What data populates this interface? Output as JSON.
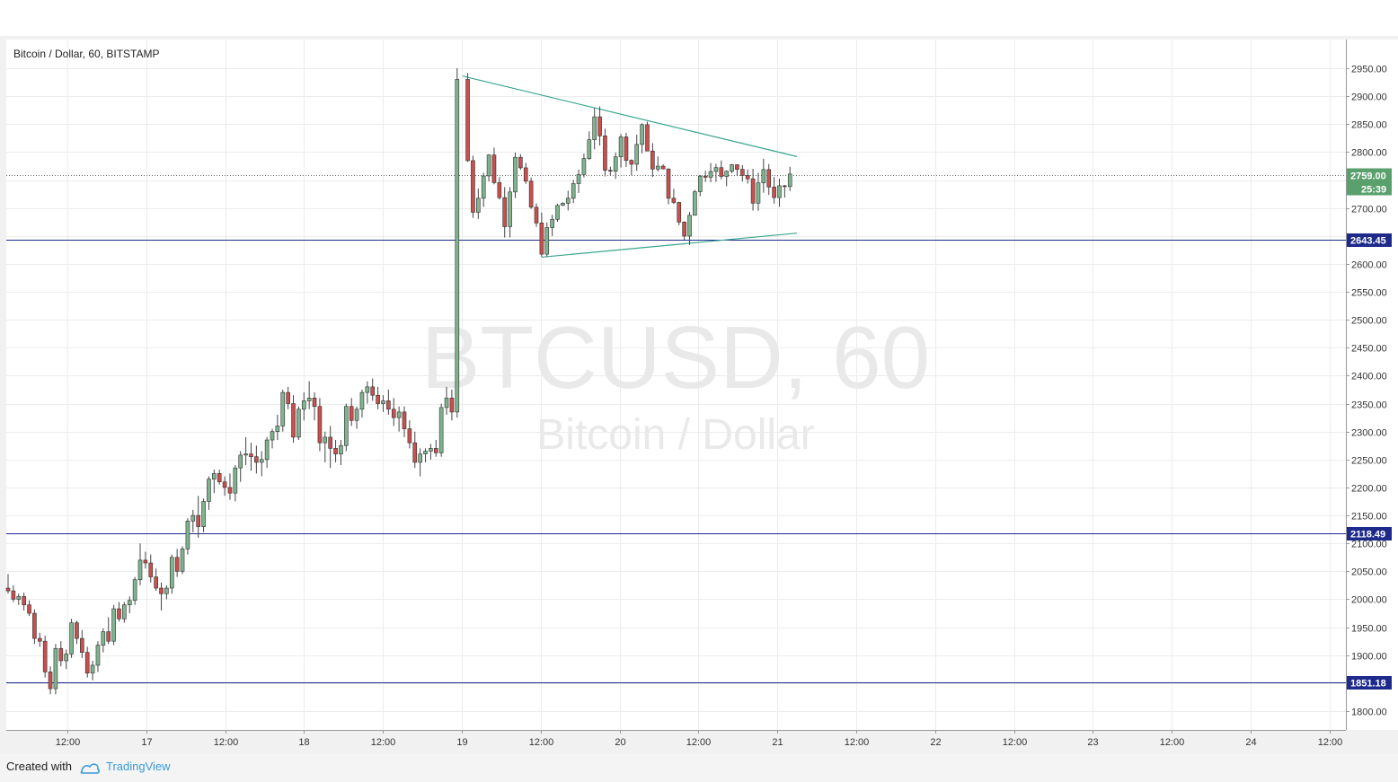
{
  "chart_title": "Bitcoin / Dollar, 60, BITSTAMP",
  "watermark": {
    "symbol": "BTCUSD, 60",
    "name": "Bitcoin / Dollar"
  },
  "footer": {
    "created_with": "Created with",
    "brand": "TradingView"
  },
  "colors": {
    "up": "#7fb58e",
    "down": "#c8504f",
    "wick": "#444444",
    "hline": "#1d2a8c",
    "trendline": "#3aa58f",
    "last_price": "#5aa06c"
  },
  "chart_data": {
    "type": "candlestick",
    "title": "Bitcoin / Dollar, 60, BITSTAMP",
    "y_ticks": [
      1800,
      1850,
      1900,
      1950,
      2000,
      2050,
      2100,
      2150,
      2200,
      2250,
      2300,
      2350,
      2400,
      2450,
      2500,
      2550,
      2600,
      2650,
      2700,
      2750,
      2800,
      2850,
      2900,
      2950
    ],
    "y_tick_labels": [
      "1800.00",
      "1850.00",
      "1900.00",
      "1950.00",
      "2000.00",
      "2050.00",
      "2100.00",
      "2150.00",
      "2200.00",
      "2250.00",
      "2300.00",
      "2350.00",
      "2400.00",
      "2450.00",
      "2500.00",
      "2550.00",
      "2600.00",
      "2650.00",
      "2700.00",
      "2750.00",
      "2800.00",
      "2850.00",
      "2900.00",
      "2950.00"
    ],
    "ylim": [
      1770,
      2975
    ],
    "x_ticks": [
      "12:00",
      "17",
      "12:00",
      "18",
      "12:00",
      "19",
      "12:00",
      "20",
      "12:00",
      "21",
      "12:00",
      "22",
      "12:00",
      "23",
      "12:00",
      "24",
      "12:00"
    ],
    "horizontal_levels": [
      {
        "value": 2643.45,
        "label": "2643.45"
      },
      {
        "value": 2118.49,
        "label": "2118.49"
      },
      {
        "value": 1851.18,
        "label": "1851.18"
      }
    ],
    "last_price": {
      "value": 2759.0,
      "label": "2759.00",
      "countdown": "25:39"
    },
    "trendlines": [
      {
        "from": {
          "bar": 86,
          "price": 2936
        },
        "to": {
          "bar": 150,
          "price": 2792
        }
      },
      {
        "from": {
          "bar": 101,
          "price": 2612
        },
        "to": {
          "bar": 150,
          "price": 2655
        }
      }
    ],
    "ohlc": [
      [
        2020,
        2045,
        2010,
        2015
      ],
      [
        2015,
        2025,
        1995,
        2000
      ],
      [
        2000,
        2010,
        1990,
        2005
      ],
      [
        2005,
        2012,
        1980,
        1990
      ],
      [
        1990,
        1998,
        1970,
        1975
      ],
      [
        1975,
        1982,
        1920,
        1930
      ],
      [
        1930,
        1940,
        1915,
        1925
      ],
      [
        1925,
        1935,
        1860,
        1870
      ],
      [
        1870,
        1880,
        1830,
        1840
      ],
      [
        1840,
        1920,
        1830,
        1912
      ],
      [
        1912,
        1925,
        1880,
        1890
      ],
      [
        1890,
        1910,
        1875,
        1902
      ],
      [
        1902,
        1965,
        1895,
        1958
      ],
      [
        1958,
        1962,
        1920,
        1930
      ],
      [
        1930,
        1945,
        1895,
        1905
      ],
      [
        1905,
        1915,
        1860,
        1868
      ],
      [
        1868,
        1890,
        1855,
        1882
      ],
      [
        1882,
        1925,
        1870,
        1918
      ],
      [
        1918,
        1948,
        1905,
        1942
      ],
      [
        1942,
        1968,
        1920,
        1925
      ],
      [
        1925,
        1990,
        1918,
        1983
      ],
      [
        1983,
        1995,
        1960,
        1965
      ],
      [
        1965,
        1995,
        1958,
        1990
      ],
      [
        1990,
        2005,
        1975,
        1998
      ],
      [
        1998,
        2040,
        1990,
        2035
      ],
      [
        2035,
        2100,
        2025,
        2070
      ],
      [
        2070,
        2085,
        2055,
        2065
      ],
      [
        2065,
        2080,
        2030,
        2040
      ],
      [
        2040,
        2055,
        2015,
        2020
      ],
      [
        2020,
        2030,
        1980,
        2010
      ],
      [
        2010,
        2025,
        2000,
        2020
      ],
      [
        2020,
        2080,
        2010,
        2075
      ],
      [
        2075,
        2090,
        2040,
        2050
      ],
      [
        2050,
        2095,
        2045,
        2090
      ],
      [
        2090,
        2145,
        2080,
        2140
      ],
      [
        2140,
        2160,
        2120,
        2150
      ],
      [
        2150,
        2185,
        2110,
        2130
      ],
      [
        2130,
        2180,
        2120,
        2175
      ],
      [
        2175,
        2220,
        2160,
        2215
      ],
      [
        2215,
        2232,
        2190,
        2225
      ],
      [
        2225,
        2232,
        2205,
        2210
      ],
      [
        2210,
        2220,
        2185,
        2200
      ],
      [
        2200,
        2225,
        2178,
        2190
      ],
      [
        2190,
        2240,
        2175,
        2235
      ],
      [
        2235,
        2265,
        2210,
        2258
      ],
      [
        2258,
        2290,
        2240,
        2260
      ],
      [
        2260,
        2280,
        2230,
        2255
      ],
      [
        2255,
        2275,
        2225,
        2245
      ],
      [
        2245,
        2265,
        2220,
        2250
      ],
      [
        2250,
        2290,
        2235,
        2285
      ],
      [
        2285,
        2305,
        2270,
        2300
      ],
      [
        2300,
        2330,
        2285,
        2310
      ],
      [
        2310,
        2375,
        2300,
        2370
      ],
      [
        2370,
        2380,
        2340,
        2350
      ],
      [
        2350,
        2365,
        2280,
        2290
      ],
      [
        2290,
        2345,
        2285,
        2340
      ],
      [
        2340,
        2370,
        2320,
        2355
      ],
      [
        2355,
        2390,
        2340,
        2360
      ],
      [
        2360,
        2370,
        2320,
        2345
      ],
      [
        2345,
        2360,
        2265,
        2280
      ],
      [
        2280,
        2300,
        2245,
        2290
      ],
      [
        2290,
        2310,
        2235,
        2270
      ],
      [
        2270,
        2285,
        2245,
        2260
      ],
      [
        2260,
        2285,
        2240,
        2275
      ],
      [
        2275,
        2350,
        2265,
        2345
      ],
      [
        2345,
        2360,
        2310,
        2320
      ],
      [
        2320,
        2345,
        2305,
        2340
      ],
      [
        2340,
        2375,
        2325,
        2370
      ],
      [
        2370,
        2390,
        2350,
        2380
      ],
      [
        2380,
        2395,
        2355,
        2365
      ],
      [
        2365,
        2380,
        2340,
        2350
      ],
      [
        2350,
        2365,
        2335,
        2355
      ],
      [
        2355,
        2375,
        2330,
        2340
      ],
      [
        2340,
        2360,
        2310,
        2325
      ],
      [
        2325,
        2345,
        2300,
        2335
      ],
      [
        2335,
        2345,
        2290,
        2305
      ],
      [
        2305,
        2320,
        2270,
        2280
      ],
      [
        2280,
        2300,
        2235,
        2245
      ],
      [
        2245,
        2270,
        2220,
        2260
      ],
      [
        2260,
        2270,
        2245,
        2265
      ],
      [
        2265,
        2278,
        2250,
        2270
      ],
      [
        2270,
        2285,
        2255,
        2262
      ],
      [
        2262,
        2350,
        2255,
        2343
      ],
      [
        2343,
        2380,
        2330,
        2360
      ],
      [
        2360,
        2375,
        2320,
        2335
      ],
      [
        2335,
        2950,
        2325,
        2930
      ]
    ]
  }
}
